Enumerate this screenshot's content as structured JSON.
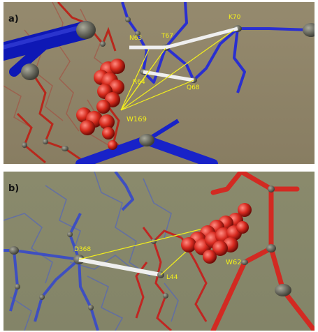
{
  "panels": [
    {
      "id": "a",
      "label": "a)",
      "residues": [
        "N63",
        "T67",
        "K70",
        "R64",
        "Q68",
        "W169"
      ],
      "colors": {
        "background": "#8f8468",
        "chain_blue": "#2a2fd0",
        "chain_red": "#c8281c",
        "connector_white": "#f2f2f2",
        "contact_line": "#f3ef1c"
      }
    },
    {
      "id": "b",
      "label": "b)",
      "residues": [
        "D368",
        "L44",
        "W62"
      ],
      "colors": {
        "background": "#87876a",
        "chain_blue": "#3e4fc0",
        "chain_red": "#d22a22",
        "connector_white": "#f2f2f2",
        "contact_line": "#f3ef1c"
      }
    }
  ]
}
